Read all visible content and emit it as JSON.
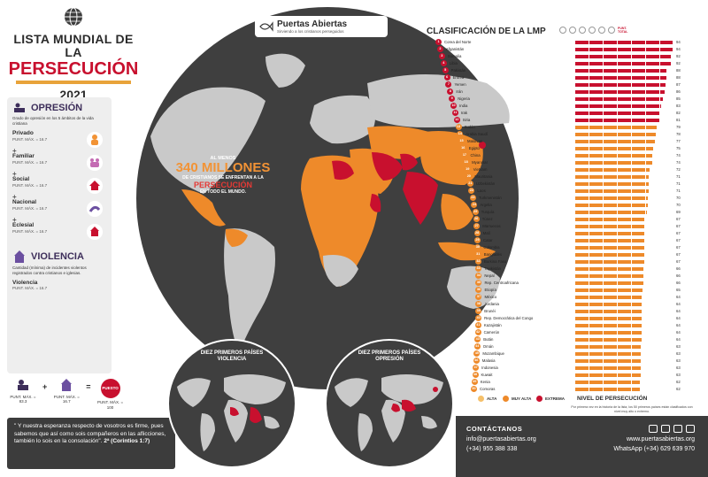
{
  "header": {
    "title_line1": "LISTA MUNDIAL DE LA",
    "title_line2": "PERSECUCIÓN",
    "year": "2021"
  },
  "brand": {
    "name": "Puertas Abiertas",
    "tagline": "Sirviendo a los cristianos perseguidos"
  },
  "headline": {
    "at_least": "AL MENOS",
    "number": "340 MILLONES",
    "line1": "DE CRISTIANOS SE ENFRENTAN A LA",
    "persecution": "PERSECUCIÓN",
    "line2": "EN TODO EL MUNDO."
  },
  "oppression": {
    "title": "OPRESIÓN",
    "description": "Grado de opresión en los 5 ámbitos de la vida cristiana",
    "spheres": [
      {
        "name": "Privado",
        "score": "PUNT. MÁX. = 16.7"
      },
      {
        "name": "Familiar",
        "score": "PUNT. MÁX. = 16.7"
      },
      {
        "name": "Social",
        "score": "PUNT. MÁX. = 16.7"
      },
      {
        "name": "Nacional",
        "score": "PUNT. MÁX. = 16.7"
      },
      {
        "name": "Eclesial",
        "score": "PUNT. MÁX. = 16.7"
      }
    ],
    "plus": "+"
  },
  "violence": {
    "title": "VIOLENCIA",
    "description": "Cantidad (mínima) de incidentes violentos registrados contra cristianos e iglesias.",
    "name": "Violencia",
    "score": "PUNT. MÁX. = 16.7"
  },
  "formula": {
    "a": "PUNT. MÁX. = 83.3",
    "b": "PUNT. MÁX. = 16.7",
    "plus": "+",
    "equals": "=",
    "badge": "PUESTO",
    "c": "PUNT. MÁX. = 100"
  },
  "quote": {
    "text": "\" Y nuestra esperanza respecto de vosotros es firme, pues sabemos que así como sois compañeros en las aflicciones, también lo sois en la consolación\".",
    "ref": "2ª (Corintios 1:7)"
  },
  "minimaps": {
    "violence": "DIEZ PRIMEROS PAÍSES VIOLENCIA",
    "oppression": "DIEZ PRIMEROS PAÍSES OPRESIÓN"
  },
  "ranking": {
    "title": "CLASIFICACIÓN DE LA LMP",
    "total_label": "PUNT. TOTAL",
    "countries": [
      {
        "rank": "1",
        "name": "Corea del Norte",
        "score": "94",
        "level": "extreme"
      },
      {
        "rank": "2",
        "name": "Afganistán",
        "score": "94",
        "level": "extreme"
      },
      {
        "rank": "3",
        "name": "Somalia",
        "score": "92",
        "level": "extreme"
      },
      {
        "rank": "4",
        "name": "Libia",
        "score": "92",
        "level": "extreme"
      },
      {
        "rank": "5",
        "name": "Pakistán",
        "score": "88",
        "level": "extreme"
      },
      {
        "rank": "6",
        "name": "Eritrea",
        "score": "88",
        "level": "extreme"
      },
      {
        "rank": "7",
        "name": "Yemen",
        "score": "87",
        "level": "extreme"
      },
      {
        "rank": "8",
        "name": "Irán",
        "score": "86",
        "level": "extreme"
      },
      {
        "rank": "9",
        "name": "Nigeria",
        "score": "85",
        "level": "extreme"
      },
      {
        "rank": "10",
        "name": "India",
        "score": "83",
        "level": "extreme"
      },
      {
        "rank": "11",
        "name": "Irak",
        "score": "82",
        "level": "extreme"
      },
      {
        "rank": "12",
        "name": "Siria",
        "score": "81",
        "level": "extreme"
      },
      {
        "rank": "13",
        "name": "Sudán",
        "score": "79",
        "level": "muy_alta"
      },
      {
        "rank": "14",
        "name": "Arabia Saudí",
        "score": "78",
        "level": "muy_alta"
      },
      {
        "rank": "15",
        "name": "Maldivas",
        "score": "77",
        "level": "muy_alta"
      },
      {
        "rank": "16",
        "name": "Egipto",
        "score": "75",
        "level": "muy_alta"
      },
      {
        "rank": "17",
        "name": "China",
        "score": "74",
        "level": "muy_alta"
      },
      {
        "rank": "18",
        "name": "Myanmar",
        "score": "74",
        "level": "muy_alta"
      },
      {
        "rank": "19",
        "name": "Vietnam",
        "score": "72",
        "level": "muy_alta"
      },
      {
        "rank": "20",
        "name": "Mauritania",
        "score": "71",
        "level": "muy_alta"
      },
      {
        "rank": "21",
        "name": "Uzbekistán",
        "score": "71",
        "level": "muy_alta"
      },
      {
        "rank": "22",
        "name": "Laos",
        "score": "71",
        "level": "muy_alta"
      },
      {
        "rank": "23",
        "name": "Turkmenistán",
        "score": "70",
        "level": "muy_alta"
      },
      {
        "rank": "24",
        "name": "Argelia",
        "score": "70",
        "level": "muy_alta"
      },
      {
        "rank": "25",
        "name": "Turquía",
        "score": "69",
        "level": "muy_alta"
      },
      {
        "rank": "26",
        "name": "Túnez",
        "score": "67",
        "level": "muy_alta"
      },
      {
        "rank": "27",
        "name": "Marruecos",
        "score": "67",
        "level": "muy_alta"
      },
      {
        "rank": "28",
        "name": "Malí",
        "score": "67",
        "level": "muy_alta"
      },
      {
        "rank": "29",
        "name": "Catar",
        "score": "67",
        "level": "muy_alta"
      },
      {
        "rank": "30",
        "name": "Colombia",
        "score": "67",
        "level": "muy_alta"
      },
      {
        "rank": "31",
        "name": "Bangladés",
        "score": "67",
        "level": "muy_alta"
      },
      {
        "rank": "32",
        "name": "Burkina Faso",
        "score": "67",
        "level": "muy_alta"
      },
      {
        "rank": "33",
        "name": "Tayikistán",
        "score": "66",
        "level": "muy_alta"
      },
      {
        "rank": "34",
        "name": "Nepal",
        "score": "66",
        "level": "muy_alta"
      },
      {
        "rank": "35",
        "name": "Rep. Centroafricana",
        "score": "66",
        "level": "muy_alta"
      },
      {
        "rank": "36",
        "name": "Etiopía",
        "score": "65",
        "level": "muy_alta"
      },
      {
        "rank": "37",
        "name": "México",
        "score": "64",
        "level": "muy_alta"
      },
      {
        "rank": "38",
        "name": "Jordania",
        "score": "64",
        "level": "muy_alta"
      },
      {
        "rank": "39",
        "name": "Brunéi",
        "score": "64",
        "level": "muy_alta"
      },
      {
        "rank": "40",
        "name": "Rep. Democrática del Congo",
        "score": "64",
        "level": "muy_alta"
      },
      {
        "rank": "41",
        "name": "Kazajistán",
        "score": "64",
        "level": "muy_alta"
      },
      {
        "rank": "42",
        "name": "Camerún",
        "score": "64",
        "level": "muy_alta"
      },
      {
        "rank": "43",
        "name": "Bután",
        "score": "64",
        "level": "muy_alta"
      },
      {
        "rank": "44",
        "name": "Omán",
        "score": "63",
        "level": "muy_alta"
      },
      {
        "rank": "45",
        "name": "Mozambique",
        "score": "63",
        "level": "muy_alta"
      },
      {
        "rank": "46",
        "name": "Malasia",
        "score": "63",
        "level": "muy_alta"
      },
      {
        "rank": "47",
        "name": "Indonesia",
        "score": "63",
        "level": "muy_alta"
      },
      {
        "rank": "48",
        "name": "Kuwait",
        "score": "63",
        "level": "muy_alta"
      },
      {
        "rank": "49",
        "name": "Kenia",
        "score": "62",
        "level": "muy_alta"
      },
      {
        "rank": "50",
        "name": "Comoras",
        "score": "62",
        "level": "muy_alta"
      }
    ]
  },
  "levels": {
    "title": "NIVEL DE PERSECUCIÓN",
    "alta": "ALTA",
    "muy_alta": "MUY ALTA",
    "extrema": "EXTREMA",
    "note": "Por primera vez en la historia de la lista, los 50 primeros países están clasificados con nivel muy alto o extremo."
  },
  "contact": {
    "title": "CONTÁCTANOS",
    "email": "info@puertasabiertas.org",
    "phone": "(+34) 955 388 338",
    "web": "www.puertasabiertas.org",
    "whatsapp": "WhatsApp (+34) 629 639 970"
  },
  "colors": {
    "ocean": "#3f3f3f",
    "land": "#c9c9c9",
    "alta": "#f5c06a",
    "muy_alta": "#ee8a2a",
    "extreme": "#c8102e",
    "accent_purple": "#3d2e5a"
  }
}
